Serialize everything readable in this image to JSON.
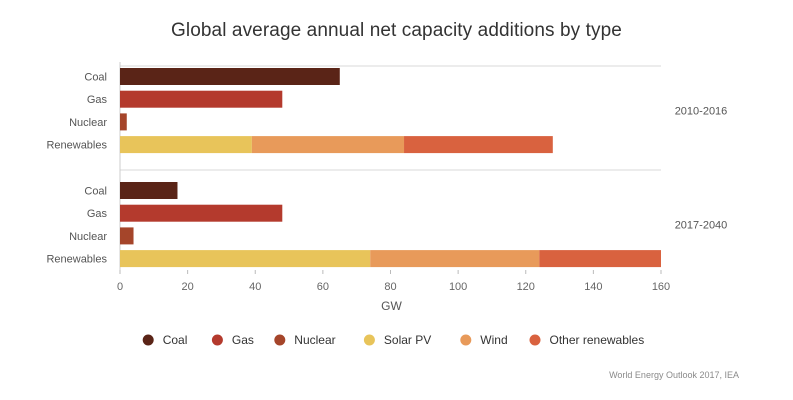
{
  "chart_data": {
    "type": "bar",
    "orientation": "horizontal",
    "stacked": true,
    "title": "Global average annual net capacity additions by type",
    "xlabel": "GW",
    "ylabel": "",
    "xlim": [
      0,
      160
    ],
    "xticks": [
      0,
      20,
      40,
      60,
      80,
      100,
      120,
      140,
      160
    ],
    "grid": false,
    "legend_position": "bottom",
    "groups": [
      {
        "label": "2010-2016",
        "bars": [
          {
            "category": "Coal",
            "segments": [
              {
                "series": "Coal",
                "value": 65
              }
            ]
          },
          {
            "category": "Gas",
            "segments": [
              {
                "series": "Gas",
                "value": 48
              }
            ]
          },
          {
            "category": "Nuclear",
            "segments": [
              {
                "series": "Nuclear",
                "value": 2
              }
            ]
          },
          {
            "category": "Renewables",
            "segments": [
              {
                "series": "Solar PV",
                "value": 39
              },
              {
                "series": "Wind",
                "value": 45
              },
              {
                "series": "Other renewables",
                "value": 44
              }
            ]
          }
        ]
      },
      {
        "label": "2017-2040",
        "bars": [
          {
            "category": "Coal",
            "segments": [
              {
                "series": "Coal",
                "value": 17
              }
            ]
          },
          {
            "category": "Gas",
            "segments": [
              {
                "series": "Gas",
                "value": 48
              }
            ]
          },
          {
            "category": "Nuclear",
            "segments": [
              {
                "series": "Nuclear",
                "value": 4
              }
            ]
          },
          {
            "category": "Renewables",
            "segments": [
              {
                "series": "Solar PV",
                "value": 74
              },
              {
                "series": "Wind",
                "value": 50
              },
              {
                "series": "Other renewables",
                "value": 36
              }
            ]
          }
        ]
      }
    ],
    "series": [
      {
        "name": "Coal",
        "color": "#5a2417"
      },
      {
        "name": "Gas",
        "color": "#b43a2d"
      },
      {
        "name": "Nuclear",
        "color": "#a5452a"
      },
      {
        "name": "Solar PV",
        "color": "#e8c45a"
      },
      {
        "name": "Wind",
        "color": "#e89a5a"
      },
      {
        "name": "Other renewables",
        "color": "#d9623f"
      }
    ]
  },
  "source_text": "World Energy Outlook 2017, IEA"
}
